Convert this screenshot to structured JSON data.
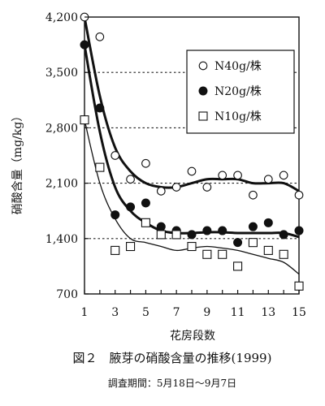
{
  "chart_data": {
    "type": "scatter",
    "title": "図２　腋芽の硝酸含量の推移(1999)",
    "subtitle": "調査期間：5月18日～9月7日",
    "xlabel": "花房段数",
    "ylabel": "硝酸含量（mg/kg）",
    "xlim": [
      1,
      15
    ],
    "ylim": [
      700,
      4200
    ],
    "x_ticks": [
      1,
      3,
      5,
      7,
      9,
      11,
      13,
      15
    ],
    "x_tick_labels": [
      "1",
      "3",
      "5",
      "7",
      "9",
      "11",
      "13",
      "15"
    ],
    "y_ticks": [
      700,
      1400,
      2100,
      2800,
      3500,
      4200
    ],
    "y_tick_labels": [
      "700",
      "1,400",
      "2,100",
      "2,800",
      "3,500",
      "4,200"
    ],
    "y_gridlines_dotted": [
      1400,
      2100,
      2800,
      3500
    ],
    "legend_position": "top-right",
    "series": [
      {
        "name": "N40g/株",
        "marker": "open-circle",
        "x": [
          1,
          2,
          3,
          4,
          5,
          6,
          7,
          8,
          9,
          10,
          11,
          12,
          13,
          14,
          15
        ],
        "y": [
          4200,
          3950,
          2450,
          2150,
          2350,
          2000,
          2050,
          2250,
          2050,
          2200,
          2200,
          1950,
          2150,
          2200,
          1950
        ],
        "trend": [
          [
            1,
            4200
          ],
          [
            2,
            3200
          ],
          [
            3,
            2550
          ],
          [
            4,
            2250
          ],
          [
            5,
            2100
          ],
          [
            6,
            2050
          ],
          [
            7,
            2050
          ],
          [
            8,
            2100
          ],
          [
            9,
            2150
          ],
          [
            10,
            2150
          ],
          [
            11,
            2150
          ],
          [
            12,
            2100
          ],
          [
            13,
            2100
          ],
          [
            14,
            2100
          ],
          [
            15,
            2000
          ]
        ]
      },
      {
        "name": "N20g/株",
        "marker": "filled-circle",
        "x": [
          1,
          2,
          3,
          4,
          5,
          6,
          7,
          8,
          9,
          10,
          11,
          12,
          13,
          14,
          15
        ],
        "y": [
          3850,
          3050,
          1700,
          1800,
          1850,
          1550,
          1500,
          1450,
          1500,
          1500,
          1350,
          1550,
          1600,
          1450,
          1500
        ],
        "trend": [
          [
            1,
            3850
          ],
          [
            2,
            2750
          ],
          [
            3,
            2050
          ],
          [
            4,
            1750
          ],
          [
            5,
            1600
          ],
          [
            6,
            1500
          ],
          [
            7,
            1470
          ],
          [
            8,
            1470
          ],
          [
            9,
            1480
          ],
          [
            10,
            1480
          ],
          [
            11,
            1470
          ],
          [
            12,
            1470
          ],
          [
            13,
            1470
          ],
          [
            14,
            1470
          ],
          [
            15,
            1420
          ]
        ]
      },
      {
        "name": "N10g/株",
        "marker": "open-square",
        "x": [
          1,
          2,
          3,
          4,
          5,
          6,
          7,
          8,
          9,
          10,
          11,
          12,
          13,
          14,
          15
        ],
        "y": [
          2900,
          2300,
          1250,
          1300,
          1600,
          1450,
          1450,
          1300,
          1200,
          1200,
          1050,
          1350,
          1250,
          1200,
          800
        ],
        "trend": [
          [
            1,
            2900
          ],
          [
            2,
            2100
          ],
          [
            3,
            1650
          ],
          [
            4,
            1400
          ],
          [
            5,
            1350
          ],
          [
            6,
            1300
          ],
          [
            7,
            1250
          ],
          [
            8,
            1280
          ],
          [
            9,
            1300
          ],
          [
            10,
            1280
          ],
          [
            11,
            1250
          ],
          [
            12,
            1200
          ],
          [
            13,
            1150
          ],
          [
            14,
            1100
          ],
          [
            15,
            950
          ]
        ]
      }
    ]
  }
}
